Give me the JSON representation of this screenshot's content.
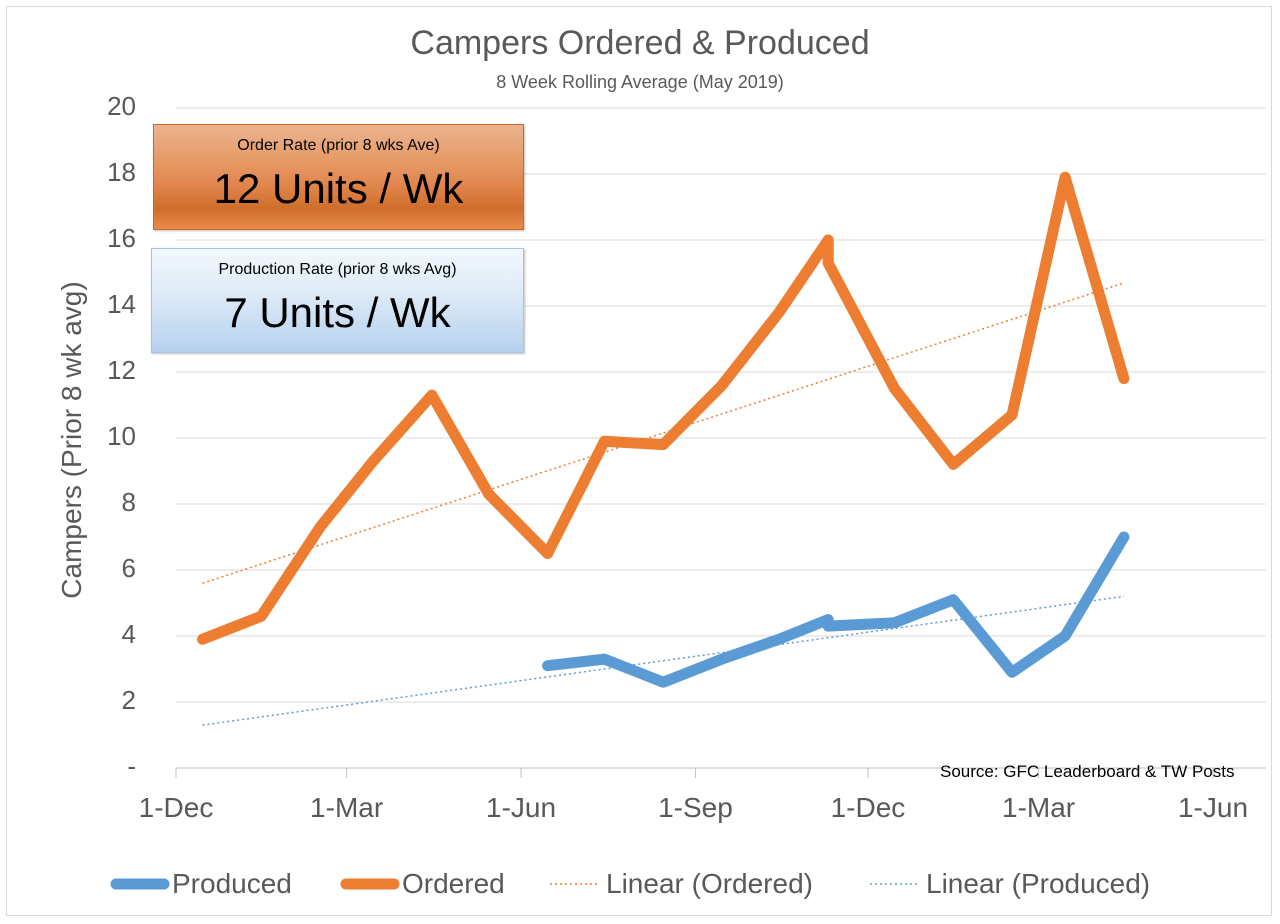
{
  "chart_data": {
    "type": "line",
    "title": "Campers Ordered & Produced",
    "subtitle": "8 Week Rolling Average (May 2019)",
    "ylabel": "Campers (Prior 8 wk avg)",
    "xlabel": "",
    "ylim": [
      0,
      20
    ],
    "y_ticks": [
      "-",
      "2",
      "4",
      "6",
      "8",
      "10",
      "12",
      "14",
      "16",
      "18",
      "20"
    ],
    "x_ticks": [
      "1-Dec",
      "1-Mar",
      "1-Jun",
      "1-Sep",
      "1-Dec",
      "1-Mar",
      "1-Jun"
    ],
    "x_tick_dates": [
      "2017-12-01",
      "2018-03-01",
      "2018-06-01",
      "2018-09-01",
      "2018-12-01",
      "2019-03-01",
      "2019-06-01"
    ],
    "grid": true,
    "legend_position": "bottom",
    "series": [
      {
        "name": "Ordered",
        "color": "#ed7d31",
        "x": [
          "2017-12-15",
          "2018-01-15",
          "2018-02-15",
          "2018-03-15",
          "2018-04-15",
          "2018-05-15",
          "2018-06-15",
          "2018-07-15",
          "2018-08-15",
          "2018-09-15",
          "2018-10-15",
          "2018-11-10",
          "2018-11-10",
          "2018-12-15",
          "2019-01-15",
          "2019-02-15",
          "2019-03-15",
          "2019-04-15"
        ],
        "values": [
          3.9,
          4.6,
          7.3,
          9.3,
          11.3,
          8.3,
          6.5,
          9.9,
          9.8,
          11.6,
          13.8,
          16.0,
          15.3,
          11.5,
          9.2,
          10.7,
          17.9,
          11.8
        ]
      },
      {
        "name": "Produced",
        "color": "#5b9bd5",
        "x": [
          "2018-06-15",
          "2018-07-15",
          "2018-08-15",
          "2018-09-15",
          "2018-10-15",
          "2018-11-10",
          "2018-11-10",
          "2018-12-15",
          "2019-01-15",
          "2019-02-15",
          "2019-03-15",
          "2019-04-15"
        ],
        "values": [
          3.1,
          3.3,
          2.6,
          3.3,
          3.9,
          4.5,
          4.3,
          4.4,
          5.1,
          2.9,
          4.0,
          7.0
        ]
      },
      {
        "name": "Linear (Ordered)",
        "color": "#ed7d31",
        "style": "dotted",
        "x": [
          "2017-12-15",
          "2019-04-15"
        ],
        "values": [
          5.6,
          14.7
        ]
      },
      {
        "name": "Linear (Produced)",
        "color": "#5b9bd5",
        "style": "dotted",
        "x": [
          "2017-12-15",
          "2019-04-15"
        ],
        "values": [
          1.3,
          5.2
        ]
      }
    ],
    "annotations": {
      "source": "Source: GFC Leaderboard & TW Posts",
      "order_box": {
        "label": "Order Rate (prior 8 wks Ave)",
        "value": "12 Units / Wk"
      },
      "production_box": {
        "label": "Production Rate (prior 8 wks Avg)",
        "value": "7 Units / Wk"
      }
    },
    "legend": [
      {
        "label": "Produced",
        "color": "#5b9bd5",
        "style": "solid"
      },
      {
        "label": "Ordered",
        "color": "#ed7d31",
        "style": "solid"
      },
      {
        "label": "Linear (Ordered)",
        "color": "#ed7d31",
        "style": "dotted"
      },
      {
        "label": "Linear (Produced)",
        "color": "#5b9bd5",
        "style": "dotted"
      }
    ]
  }
}
